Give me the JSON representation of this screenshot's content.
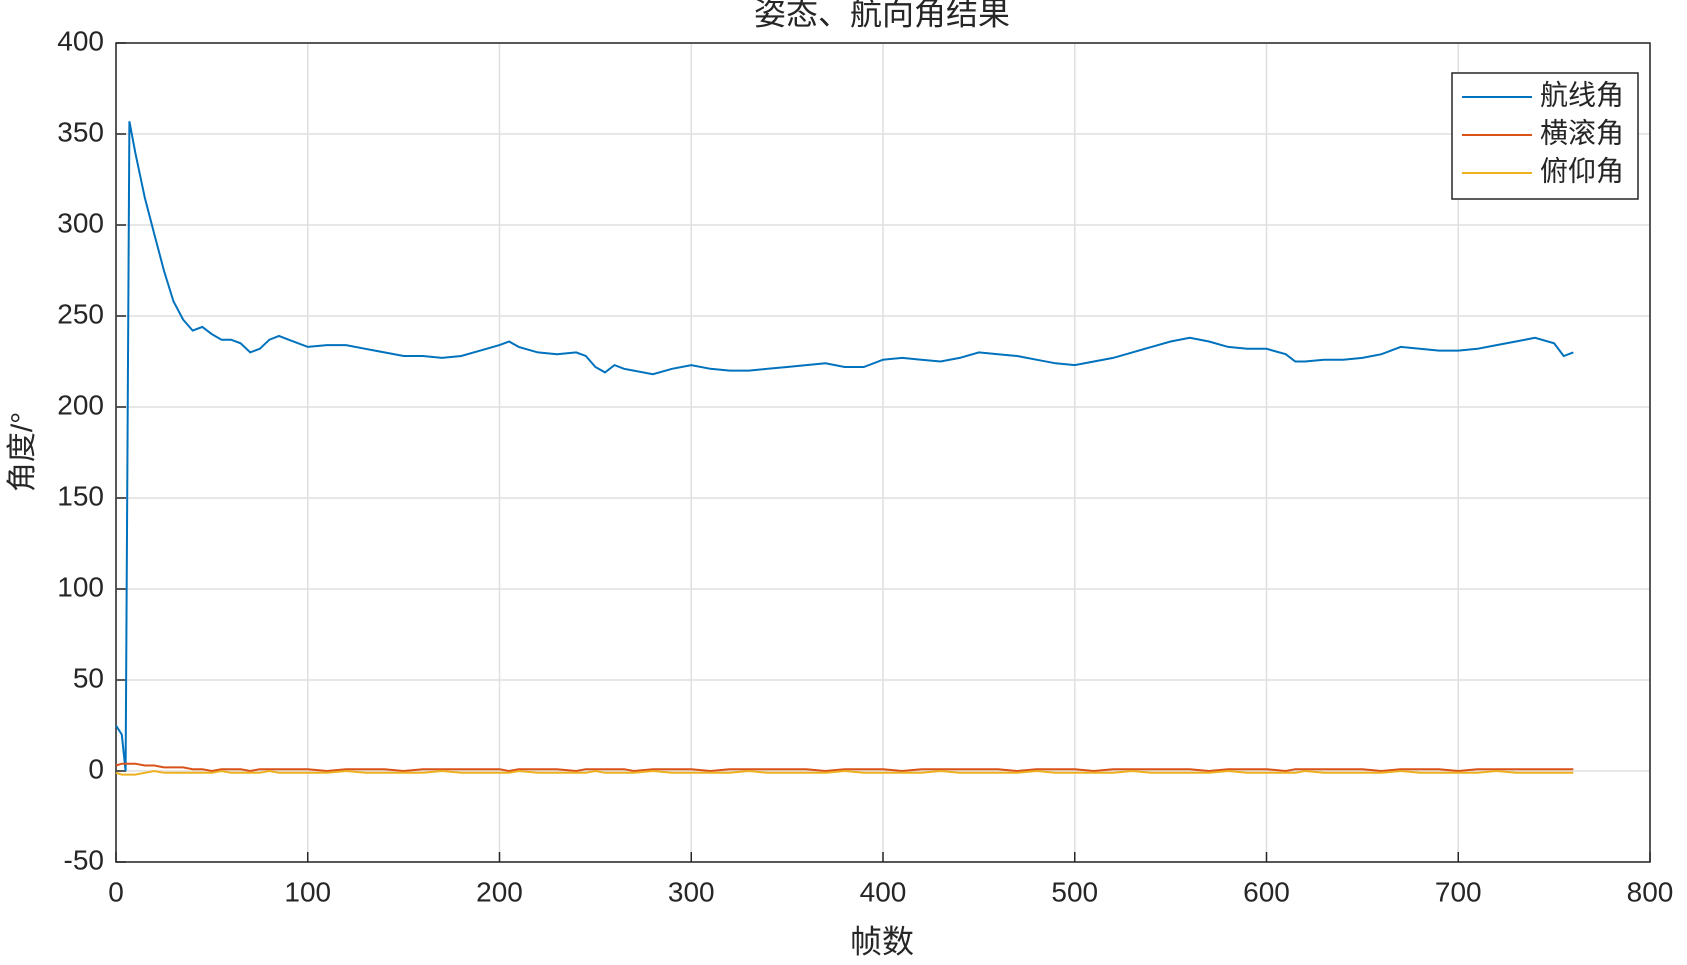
{
  "chart_data": {
    "type": "line",
    "title": "姿态、航向角结果",
    "x_label": "帧数",
    "y_label": "角度/°",
    "x": [
      0,
      3,
      5,
      7,
      10,
      15,
      20,
      25,
      30,
      35,
      40,
      45,
      50,
      55,
      60,
      65,
      70,
      75,
      80,
      85,
      90,
      100,
      110,
      120,
      130,
      140,
      150,
      160,
      170,
      180,
      190,
      200,
      205,
      210,
      220,
      230,
      240,
      245,
      250,
      255,
      260,
      265,
      270,
      280,
      290,
      300,
      310,
      320,
      330,
      340,
      350,
      360,
      370,
      380,
      390,
      400,
      410,
      420,
      430,
      440,
      450,
      460,
      470,
      480,
      490,
      500,
      510,
      520,
      530,
      540,
      550,
      560,
      570,
      580,
      590,
      600,
      610,
      615,
      620,
      630,
      640,
      650,
      660,
      670,
      680,
      690,
      700,
      710,
      720,
      730,
      740,
      750,
      755,
      760
    ],
    "series": [
      {
        "name": "航线角",
        "color": "#0072BD",
        "values": [
          25,
          20,
          0,
          357,
          340,
          315,
          295,
          275,
          258,
          248,
          242,
          244,
          240,
          237,
          237,
          235,
          230,
          232,
          237,
          239,
          237,
          233,
          234,
          234,
          232,
          230,
          228,
          228,
          227,
          228,
          231,
          234,
          236,
          233,
          230,
          229,
          230,
          228,
          222,
          219,
          223,
          221,
          220,
          218,
          221,
          223,
          221,
          220,
          220,
          221,
          222,
          223,
          224,
          222,
          222,
          226,
          227,
          226,
          225,
          227,
          230,
          229,
          228,
          226,
          224,
          223,
          225,
          227,
          230,
          233,
          236,
          238,
          236,
          233,
          232,
          232,
          229,
          225,
          225,
          226,
          226,
          227,
          229,
          233,
          232,
          231,
          231,
          232,
          234,
          236,
          238,
          235,
          228,
          230
        ]
      },
      {
        "name": "横滚角",
        "color": "#D95319",
        "values": [
          3,
          4,
          4,
          4,
          4,
          3,
          3,
          2,
          2,
          2,
          1,
          1,
          0,
          1,
          1,
          1,
          0,
          1,
          1,
          1,
          1,
          1,
          0,
          1,
          1,
          1,
          0,
          1,
          1,
          1,
          1,
          1,
          0,
          1,
          1,
          1,
          0,
          1,
          1,
          1,
          1,
          1,
          0,
          1,
          1,
          1,
          0,
          1,
          1,
          1,
          1,
          1,
          0,
          1,
          1,
          1,
          0,
          1,
          1,
          1,
          1,
          1,
          0,
          1,
          1,
          1,
          0,
          1,
          1,
          1,
          1,
          1,
          0,
          1,
          1,
          1,
          0,
          1,
          1,
          1,
          1,
          1,
          0,
          1,
          1,
          1,
          0,
          1,
          1,
          1,
          1,
          1,
          1,
          1
        ]
      },
      {
        "name": "俯仰角",
        "color": "#EDB120",
        "values": [
          -1,
          -2,
          -2,
          -2,
          -2,
          -1,
          0,
          -1,
          -1,
          -1,
          -1,
          -1,
          -1,
          0,
          -1,
          -1,
          -1,
          -1,
          0,
          -1,
          -1,
          -1,
          -1,
          0,
          -1,
          -1,
          -1,
          -1,
          0,
          -1,
          -1,
          -1,
          -1,
          0,
          -1,
          -1,
          -1,
          -1,
          0,
          -1,
          -1,
          -1,
          -1,
          0,
          -1,
          -1,
          -1,
          -1,
          0,
          -1,
          -1,
          -1,
          -1,
          0,
          -1,
          -1,
          -1,
          -1,
          0,
          -1,
          -1,
          -1,
          -1,
          0,
          -1,
          -1,
          -1,
          -1,
          0,
          -1,
          -1,
          -1,
          -1,
          0,
          -1,
          -1,
          -1,
          -1,
          0,
          -1,
          -1,
          -1,
          -1,
          0,
          -1,
          -1,
          -1,
          -1,
          0,
          -1,
          -1,
          -1,
          -1,
          -1
        ]
      }
    ],
    "xlim": [
      0,
      800
    ],
    "xticks": [
      0,
      100,
      200,
      300,
      400,
      500,
      600,
      700,
      800
    ],
    "ylim": [
      -50,
      400
    ],
    "yticks": [
      -50,
      0,
      50,
      100,
      150,
      200,
      250,
      300,
      350,
      400
    ],
    "grid": true,
    "legend": "upper right"
  }
}
